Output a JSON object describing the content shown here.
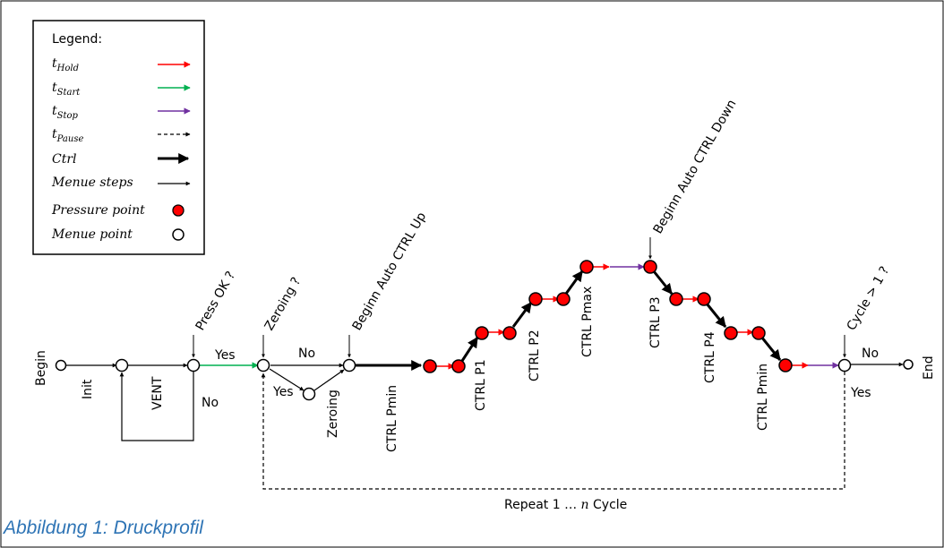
{
  "legend": {
    "title": "Legend:",
    "items": [
      {
        "main": "t",
        "sub": "Hold",
        "color": "#ff0000",
        "style": "solid"
      },
      {
        "main": "t",
        "sub": "Start",
        "color": "#00b050",
        "style": "solid"
      },
      {
        "main": "t",
        "sub": "Stop",
        "color": "#7030a0",
        "style": "solid"
      },
      {
        "main": "t",
        "sub": "Pause",
        "color": "#000000",
        "style": "dashed"
      },
      {
        "main": "Ctrl",
        "sub": "",
        "color": "#000000",
        "style": "thick"
      },
      {
        "main": "Menue steps",
        "sub": "",
        "color": "#000000",
        "style": "thin"
      },
      {
        "main": "Pressure point",
        "sub": "",
        "color": "#ff0000",
        "style": "pressure"
      },
      {
        "main": "Menue point",
        "sub": "",
        "color": "#ffffff",
        "style": "menue"
      }
    ]
  },
  "labels": {
    "begin": "Begin",
    "init": "Init",
    "vent": "VENT",
    "press_ok": "Press OK ?",
    "yes1": "Yes",
    "no1": "No",
    "zeroing_q": "Zeroing ?",
    "no2": "No",
    "yes2": "Yes",
    "zeroing": "Zeroing",
    "begin_up": "Beginn Auto CTRL Up",
    "ctrl_pmin1": "CTRL Pmin",
    "ctrl_p1": "CTRL P1",
    "ctrl_p2": "CTRL P2",
    "ctrl_pmax": "CTRL Pmax",
    "begin_down": "Beginn Auto CTRL Down",
    "ctrl_p3": "CTRL P3",
    "ctrl_p4": "CTRL P4",
    "ctrl_pmin2": "CTRL Pmin",
    "cycle_q": "Cycle > 1 ?",
    "no3": "No",
    "yes3": "Yes",
    "end": "End",
    "repeat_pre": "Repeat 1 … ",
    "repeat_n": "n",
    "repeat_post": " Cycle"
  },
  "caption": "Abbildung 1: Druckprofil"
}
